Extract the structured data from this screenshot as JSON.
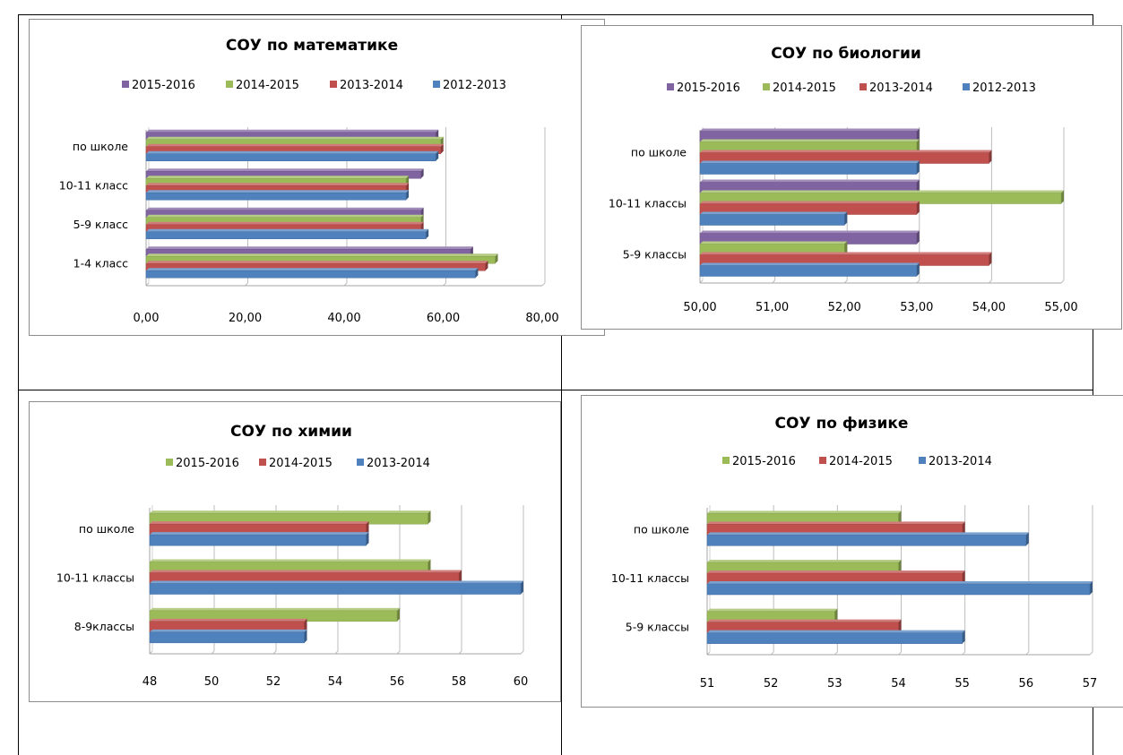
{
  "colors": {
    "purple": "#8064A2",
    "green": "#9BBB59",
    "red": "#C0504D",
    "blue": "#4F81BD"
  },
  "chart_data": [
    {
      "type": "bar",
      "orientation": "horizontal",
      "title": "СОУ по математике",
      "categories": [
        "по школе",
        "10-11 класс",
        "5-9 класс",
        "1-4 класс"
      ],
      "series": [
        {
          "name": "2015-2016",
          "color": "#8064A2",
          "values": [
            58.5,
            55.5,
            55.5,
            65.5
          ]
        },
        {
          "name": "2014-2015",
          "color": "#9BBB59",
          "values": [
            59.5,
            52.5,
            55.5,
            70.5
          ]
        },
        {
          "name": "2013-2014",
          "color": "#C0504D",
          "values": [
            59.5,
            52.5,
            55.5,
            68.5
          ]
        },
        {
          "name": "2012-2013",
          "color": "#4F81BD",
          "values": [
            58.5,
            52.5,
            56.5,
            66.5
          ]
        }
      ],
      "xlim": [
        0,
        80
      ],
      "ticks": [
        "0,00",
        "20,00",
        "40,00",
        "60,00",
        "80,00"
      ],
      "legend_position": "top"
    },
    {
      "type": "bar",
      "orientation": "horizontal",
      "title": "СОУ по биологии",
      "categories": [
        "по школе",
        "10-11 классы",
        "5-9 классы"
      ],
      "series": [
        {
          "name": "2015-2016",
          "color": "#8064A2",
          "values": [
            53,
            53,
            53
          ]
        },
        {
          "name": "2014-2015",
          "color": "#9BBB59",
          "values": [
            53,
            55,
            52
          ]
        },
        {
          "name": "2013-2014",
          "color": "#C0504D",
          "values": [
            54,
            53,
            54
          ]
        },
        {
          "name": "2012-2013",
          "color": "#4F81BD",
          "values": [
            53,
            52,
            53
          ]
        }
      ],
      "xlim": [
        50,
        55
      ],
      "ticks": [
        "50,00",
        "51,00",
        "52,00",
        "53,00",
        "54,00",
        "55,00"
      ],
      "legend_position": "top"
    },
    {
      "type": "bar",
      "orientation": "horizontal",
      "title": "СОУ по химии",
      "categories": [
        "по школе",
        "10-11 классы",
        "8-9классы"
      ],
      "series": [
        {
          "name": "2015-2016",
          "color": "#9BBB59",
          "values": [
            57,
            57,
            56
          ]
        },
        {
          "name": "2014-2015",
          "color": "#C0504D",
          "values": [
            55,
            58,
            53
          ]
        },
        {
          "name": "2013-2014",
          "color": "#4F81BD",
          "values": [
            55,
            60,
            53
          ]
        }
      ],
      "xlim": [
        48,
        60
      ],
      "ticks": [
        "48",
        "50",
        "52",
        "54",
        "56",
        "58",
        "60"
      ],
      "legend_position": "top"
    },
    {
      "type": "bar",
      "orientation": "horizontal",
      "title": "СОУ по физике",
      "categories": [
        "по  школе",
        "10-11 классы",
        "5-9 классы"
      ],
      "series": [
        {
          "name": "2015-2016",
          "color": "#9BBB59",
          "values": [
            54,
            54,
            53
          ]
        },
        {
          "name": "2014-2015",
          "color": "#C0504D",
          "values": [
            55,
            55,
            54
          ]
        },
        {
          "name": "2013-2014",
          "color": "#4F81BD",
          "values": [
            56,
            57,
            55
          ]
        }
      ],
      "xlim": [
        51,
        57
      ],
      "ticks": [
        "51",
        "52",
        "53",
        "54",
        "55",
        "56",
        "57"
      ],
      "legend_position": "top"
    }
  ]
}
